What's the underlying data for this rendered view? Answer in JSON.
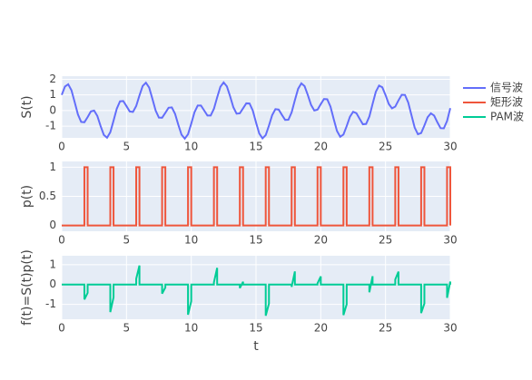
{
  "chart_data": [
    {
      "type": "line",
      "ylabel": "S(t)",
      "xlim": [
        0,
        30
      ],
      "xticks": [
        0,
        5,
        10,
        15,
        20,
        25,
        30
      ],
      "ylim": [
        -1.75,
        2.2
      ],
      "yticks": [
        -1,
        0,
        1,
        2
      ],
      "series": [
        {
          "name": "信号波",
          "color": "#636efa",
          "x": [
            0,
            0.25,
            0.5,
            0.75,
            1,
            1.25,
            1.5,
            1.75,
            2,
            2.25,
            2.5,
            2.75,
            3,
            3.25,
            3.5,
            3.75,
            4,
            4.25,
            4.5,
            4.75,
            5,
            5.25,
            5.5,
            5.75,
            6,
            6.25,
            6.5,
            6.75,
            7,
            7.25,
            7.5,
            7.75,
            8,
            8.25,
            8.5,
            8.75,
            9,
            9.25,
            9.5,
            9.75,
            10,
            10.25,
            10.5,
            10.75,
            11,
            11.25,
            11.5,
            11.75,
            12,
            12.25,
            12.5,
            12.75,
            13,
            13.25,
            13.5,
            13.75,
            14,
            14.25,
            14.5,
            14.75,
            15,
            15.25,
            15.5,
            15.75,
            16,
            16.25,
            16.5,
            16.75,
            17,
            17.25,
            17.5,
            17.75,
            18,
            18.25,
            18.5,
            18.75,
            19,
            19.25,
            19.5,
            19.75,
            20,
            20.25,
            20.5,
            20.75,
            21,
            21.25,
            21.5,
            21.75,
            22,
            22.25,
            22.5,
            22.75,
            23,
            23.25,
            23.5,
            23.75,
            24,
            24.25,
            24.5,
            24.75,
            25,
            25.25,
            25.5,
            25.75,
            26,
            26.25,
            26.5,
            26.75,
            27,
            27.25,
            27.5,
            27.75,
            28,
            28.25,
            28.5,
            28.75,
            29,
            29.25,
            29.5,
            29.75,
            30
          ],
          "values": [
            1.0,
            1.54,
            1.68,
            1.3,
            0.54,
            -0.25,
            -0.73,
            -0.75,
            -0.42,
            -0.06,
            0,
            -0.35,
            -0.99,
            -1.56,
            -1.74,
            -1.39,
            -0.65,
            0.12,
            0.59,
            0.61,
            0.28,
            -0.06,
            -0.09,
            0.29,
            0.96,
            1.57,
            1.78,
            1.47,
            0.75,
            0,
            -0.45,
            -0.46,
            -0.15,
            0.18,
            0.2,
            -0.21,
            -0.91,
            -1.55,
            -1.8,
            -1.52,
            -0.84,
            -0.11,
            0.32,
            0.32,
            0,
            -0.32,
            -0.32,
            0.11,
            0.84,
            1.52,
            1.8,
            1.55,
            0.91,
            0.21,
            -0.2,
            -0.18,
            0.14,
            0.46,
            0.45,
            0,
            -0.76,
            -1.47,
            -1.78,
            -1.57,
            -0.96,
            -0.29,
            0.09,
            0.06,
            -0.28,
            -0.6,
            -0.59,
            -0.12,
            0.66,
            1.39,
            1.74,
            1.56,
            0.99,
            0.36,
            0,
            0.06,
            0.41,
            0.74,
            0.72,
            0.25,
            -0.55,
            -1.31,
            -1.68,
            -1.54,
            -1.0,
            -0.4,
            -0.08,
            -0.17,
            -0.53,
            -0.88,
            -0.86,
            -0.39,
            0.42,
            1.2,
            1.6,
            1.49,
            0.99,
            0.42,
            0.14,
            0.25,
            0.65,
            1.01,
            1.0,
            0.52,
            -0.29,
            -1.09,
            -1.52,
            -1.44,
            -0.96,
            -0.43,
            -0.18,
            -0.32,
            -0.75,
            -1.13,
            -1.14,
            -0.67,
            0.15
          ]
        }
      ]
    },
    {
      "type": "line",
      "ylabel": "p(t)",
      "xlim": [
        0,
        30
      ],
      "xticks": [
        0,
        5,
        10,
        15,
        20,
        25,
        30
      ],
      "ylim": [
        -0.1,
        1.1
      ],
      "yticks": [
        0,
        0.5,
        1
      ],
      "series": [
        {
          "name": "矩形波",
          "color": "#EF553B",
          "x": [
            0,
            1.75,
            1.75,
            2,
            2,
            3.75,
            3.75,
            4,
            4,
            5.75,
            5.75,
            6,
            6,
            7.75,
            7.75,
            8,
            8,
            9.75,
            9.75,
            10,
            10,
            11.75,
            11.75,
            12,
            12,
            13.75,
            13.75,
            14,
            14,
            15.75,
            15.75,
            16,
            16,
            17.75,
            17.75,
            18,
            18,
            19.75,
            19.75,
            20,
            20,
            21.75,
            21.75,
            22,
            22,
            23.75,
            23.75,
            24,
            24,
            25.75,
            25.75,
            26,
            26,
            27.75,
            27.75,
            28,
            28,
            29.75,
            29.75,
            30,
            30
          ],
          "values": [
            0,
            0,
            1,
            1,
            0,
            0,
            1,
            1,
            0,
            0,
            1,
            1,
            0,
            0,
            1,
            1,
            0,
            0,
            1,
            1,
            0,
            0,
            1,
            1,
            0,
            0,
            1,
            1,
            0,
            0,
            1,
            1,
            0,
            0,
            1,
            1,
            0,
            0,
            1,
            1,
            0,
            0,
            1,
            1,
            0,
            0,
            1,
            1,
            0,
            0,
            1,
            1,
            0,
            0,
            1,
            1,
            0,
            0,
            1,
            1,
            0
          ]
        }
      ]
    },
    {
      "type": "line",
      "ylabel": "f(t)=S(t)p(t)",
      "xlabel": "t",
      "xlim": [
        0,
        30
      ],
      "xticks": [
        0,
        5,
        10,
        15,
        20,
        25,
        30
      ],
      "ylim": [
        -1.75,
        1.45
      ],
      "yticks": [
        -1,
        0,
        1
      ],
      "series": [
        {
          "name": "PAM波",
          "color": "#00cc96",
          "x": [
            0,
            1.75,
            1.75,
            2,
            2,
            3.75,
            3.75,
            4,
            4,
            5.75,
            5.75,
            6,
            6,
            7.75,
            7.75,
            8,
            8,
            9.75,
            9.75,
            10,
            10,
            11.75,
            11.75,
            12,
            12,
            13.75,
            13.75,
            14,
            14,
            15.75,
            15.75,
            16,
            16,
            17.75,
            17.75,
            18,
            18,
            19.75,
            19.75,
            20,
            20,
            21.75,
            21.75,
            22,
            22,
            23.75,
            23.75,
            24,
            24,
            25.75,
            25.75,
            26,
            26,
            27.75,
            27.75,
            28,
            28,
            29.75,
            29.75,
            30,
            30
          ],
          "values": [
            0,
            0,
            -0.75,
            -0.42,
            0,
            0,
            -1.39,
            -0.65,
            0,
            0,
            0.29,
            0.96,
            0,
            0,
            -0.46,
            -0.15,
            0,
            0,
            -1.52,
            -0.84,
            0,
            0,
            0.11,
            0.84,
            0,
            0,
            -0.18,
            0.14,
            0,
            0,
            -1.57,
            -0.96,
            0,
            0,
            -0.12,
            0.66,
            0,
            0,
            0.06,
            0.41,
            0,
            0,
            -1.54,
            -1.0,
            0,
            0,
            -0.39,
            0.42,
            0,
            0,
            0.25,
            0.65,
            0,
            0,
            -1.44,
            -0.96,
            0,
            0,
            -0.67,
            0.15,
            0
          ]
        }
      ]
    }
  ]
}
